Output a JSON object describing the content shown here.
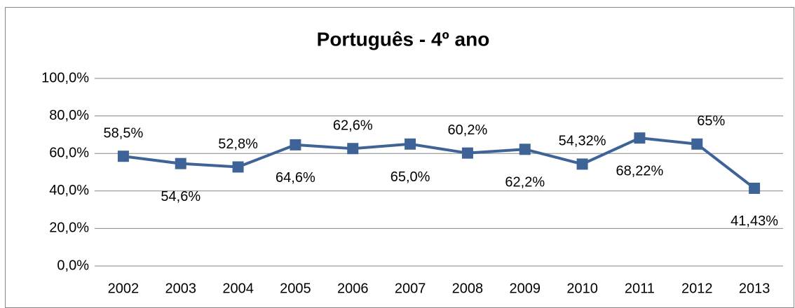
{
  "chart_data": {
    "type": "line",
    "title": "Português - 4º ano",
    "categories": [
      "2002",
      "2003",
      "2004",
      "2005",
      "2006",
      "2007",
      "2008",
      "2009",
      "2010",
      "2011",
      "2012",
      "2013"
    ],
    "series": [
      {
        "color": "#3e6497",
        "values": [
          58.5,
          54.6,
          52.8,
          64.6,
          62.6,
          65.0,
          60.2,
          62.2,
          54.32,
          68.22,
          65,
          41.43
        ],
        "value_labels": [
          "58,5%",
          "54,6%",
          "52,8%",
          "64,6%",
          "62,6%",
          "65,0%",
          "60,2%",
          "62,2%",
          "54,32%",
          "68,22%",
          "65%",
          "41,43%"
        ]
      }
    ],
    "ylim": [
      0,
      100
    ],
    "yticks": [
      {
        "value": 0,
        "label": "0,0%"
      },
      {
        "value": 20,
        "label": "20,0%"
      },
      {
        "value": 40,
        "label": "40,0%"
      },
      {
        "value": 60,
        "label": "60,0%"
      },
      {
        "value": 80,
        "label": "80,0%"
      },
      {
        "value": 100,
        "label": "100,0%"
      }
    ],
    "grid": true
  }
}
